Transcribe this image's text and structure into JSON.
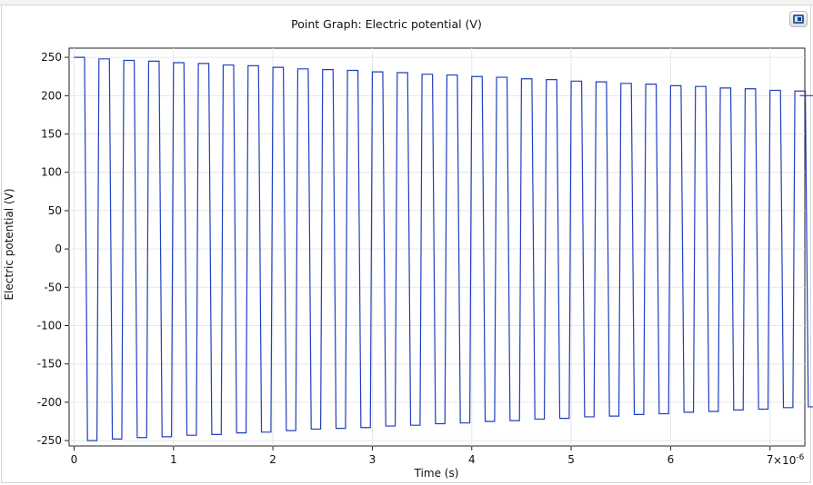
{
  "chart_data": {
    "type": "line",
    "title": "Point Graph: Electric potential (V)",
    "xlabel": "Time (s)",
    "ylabel": "Electric potential (V)",
    "x_multiplier_label": "×10",
    "x_multiplier_exponent": "-6",
    "x_scale_factor": 1e-06,
    "xlim": [
      -0.05,
      7.35
    ],
    "ylim": [
      -257,
      262
    ],
    "x_ticks": [
      "0",
      "1",
      "2",
      "3",
      "4",
      "5",
      "6",
      "7"
    ],
    "y_ticks": [
      "250",
      "200",
      "150",
      "100",
      "50",
      "0",
      "-50",
      "-100",
      "-150",
      "-200",
      "-250"
    ],
    "grid": true,
    "series": [
      {
        "color": "#1f3fbf",
        "waveform": "square",
        "period": 0.25,
        "x_start": 0,
        "x_end": 7.3,
        "amplitude_start": 250,
        "amplitude_end": 200,
        "high_values": [
          250,
          248,
          246,
          245,
          243,
          242,
          240,
          239,
          237,
          235,
          234,
          233,
          231,
          230,
          228,
          227,
          225,
          224,
          222,
          221,
          219,
          218,
          216,
          215,
          213,
          212,
          210,
          209,
          207,
          206
        ],
        "low_values": [
          -250,
          -248,
          -246,
          -245,
          -243,
          -242,
          -240,
          -239,
          -237,
          -235,
          -234,
          -233,
          -231,
          -230,
          -228,
          -227,
          -225,
          -224,
          -222,
          -221,
          -219,
          -218,
          -216,
          -215,
          -213,
          -212,
          -210,
          -209,
          -207,
          -206
        ]
      }
    ]
  },
  "toolbar": {
    "button_icon": "plot-window-icon"
  }
}
